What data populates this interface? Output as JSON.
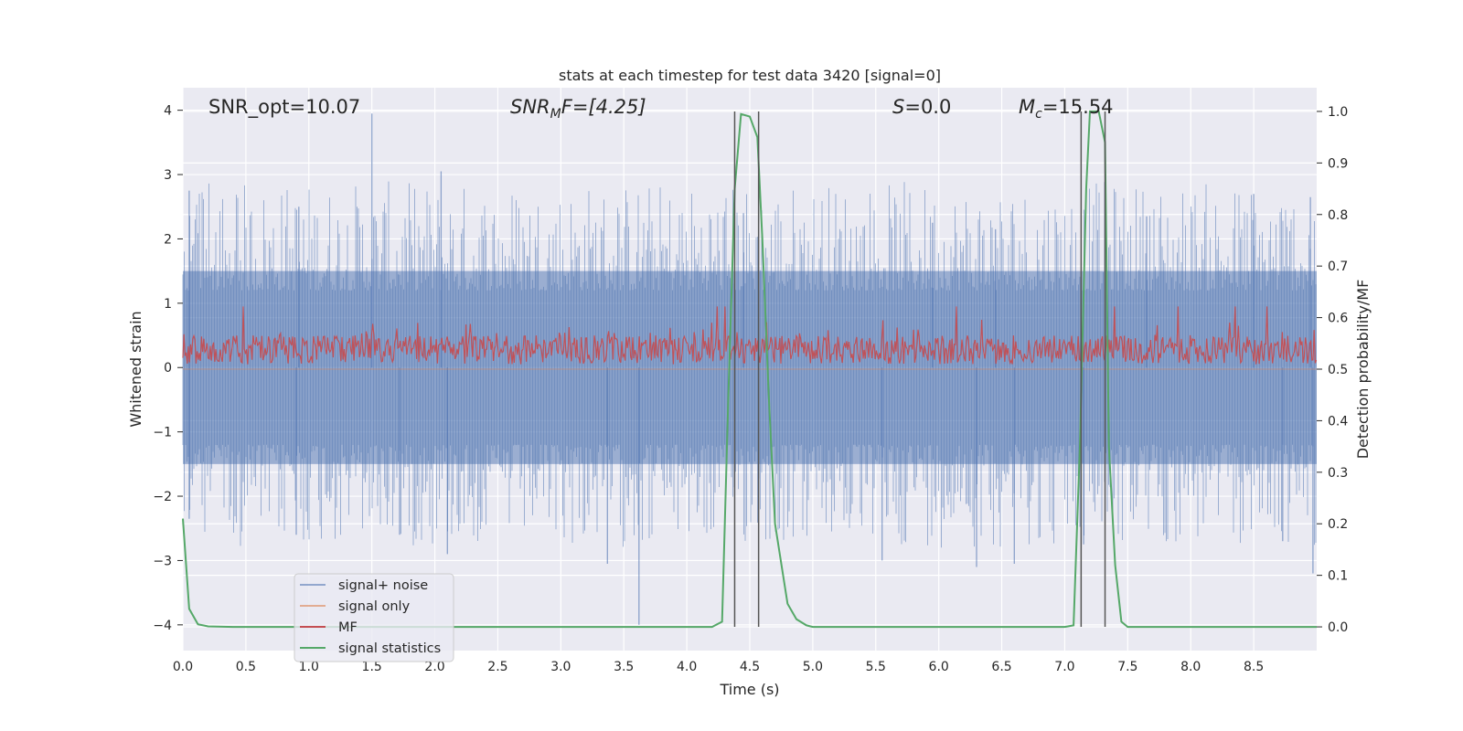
{
  "chart_data": {
    "type": "line",
    "title": "stats at each timestep for test data 3420 [signal=0]",
    "xlabel": "Time (s)",
    "ylabel": "Whitened strain",
    "y2label": "Detection probability/MF",
    "xlim": [
      0,
      9
    ],
    "ylim": [
      -4.4,
      4.35
    ],
    "y2lim": [
      -0.046,
      1.046
    ],
    "xticks": [
      "0.0",
      "0.5",
      "1.0",
      "1.5",
      "2.0",
      "2.5",
      "3.0",
      "3.5",
      "4.0",
      "4.5",
      "5.0",
      "5.5",
      "6.0",
      "6.5",
      "7.0",
      "7.5",
      "8.0",
      "8.5"
    ],
    "yticks": [
      "−4",
      "−3",
      "−2",
      "−1",
      "0",
      "1",
      "2",
      "3",
      "4"
    ],
    "y2ticks": [
      "0.0",
      "0.1",
      "0.2",
      "0.3",
      "0.4",
      "0.5",
      "0.6",
      "0.7",
      "0.8",
      "0.9",
      "1.0"
    ],
    "grid": true,
    "legend_position": "lower-left",
    "annotations": {
      "snr_opt": "SNR_opt=10.07",
      "snr_mf_base": "SNR",
      "snr_mf_sub": "M",
      "snr_mf_rest": "F=[4.25]",
      "s_var": "S",
      "s_rest": "=0.0",
      "mc_base": "M",
      "mc_sub": "c",
      "mc_rest": "=15.54"
    },
    "series": [
      {
        "name": "signal+ noise",
        "color": "#4c72b0",
        "description_values": "noise band mostly within ±1.6, spikes to about ±2.8, max ~3.95 at t=1.5, min ~-4.0 at t=3.62",
        "spikes": [
          [
            0.05,
            2.75
          ],
          [
            0.05,
            -2.35
          ],
          [
            0.92,
            2.5
          ],
          [
            0.9,
            -2.6
          ],
          [
            1.5,
            3.95
          ],
          [
            1.72,
            -2.6
          ],
          [
            2.05,
            3.05
          ],
          [
            2.1,
            -2.9
          ],
          [
            3.37,
            -3.05
          ],
          [
            3.62,
            -4.0
          ],
          [
            4.45,
            2.4
          ],
          [
            5.55,
            -3.0
          ],
          [
            5.95,
            2.25
          ],
          [
            6.3,
            -3.1
          ],
          [
            6.45,
            2.15
          ],
          [
            6.6,
            -3.05
          ],
          [
            7.15,
            -2.75
          ],
          [
            7.65,
            2.35
          ],
          [
            8.5,
            2.7
          ],
          [
            8.73,
            -2.7
          ],
          [
            8.97,
            -3.2
          ],
          [
            8.95,
            2.65
          ]
        ]
      },
      {
        "name": "signal only",
        "color": "#dd8452",
        "description_values": "zero throughout"
      },
      {
        "name": "MF",
        "color": "#c44e52",
        "description_values": "positive band on left axis ranging roughly 0.05 to 0.75, occasional spikes to 1.0"
      },
      {
        "name": "signal statistics",
        "color": "#55a868",
        "axis": "right",
        "x": [
          0.0,
          0.05,
          0.12,
          0.2,
          0.4,
          1.0,
          2.0,
          3.0,
          4.0,
          4.2,
          4.28,
          4.33,
          4.38,
          4.43,
          4.5,
          4.56,
          4.6,
          4.65,
          4.7,
          4.8,
          4.87,
          4.95,
          5.0,
          6.0,
          7.0,
          7.07,
          7.12,
          7.17,
          7.2,
          7.24,
          7.27,
          7.32,
          7.35,
          7.4,
          7.45,
          7.5,
          8.0,
          9.0
        ],
        "values": [
          0.21,
          0.035,
          0.005,
          0.001,
          0.0,
          0.0,
          0.0,
          0.0,
          0.0,
          0.0,
          0.01,
          0.45,
          0.85,
          0.995,
          0.99,
          0.95,
          0.75,
          0.45,
          0.2,
          0.045,
          0.015,
          0.003,
          0.0,
          0.0,
          0.0,
          0.003,
          0.35,
          0.85,
          1.0,
          1.0,
          1.0,
          0.94,
          0.35,
          0.12,
          0.01,
          0.0,
          0.0,
          0.0
        ]
      }
    ],
    "vertical_lines": [
      {
        "x": 4.38,
        "from": 0.0,
        "to": 1.0,
        "color": "#555555"
      },
      {
        "x": 4.57,
        "from": 0.0,
        "to": 1.0,
        "color": "#555555"
      },
      {
        "x": 7.13,
        "from": 0.0,
        "to": 1.0,
        "color": "#555555"
      },
      {
        "x": 7.32,
        "from": 0.0,
        "to": 1.0,
        "color": "#555555"
      }
    ],
    "style": {
      "plot_bg": "#eaeaf2",
      "grid_color": "#ffffff",
      "text_color": "#262626"
    }
  }
}
